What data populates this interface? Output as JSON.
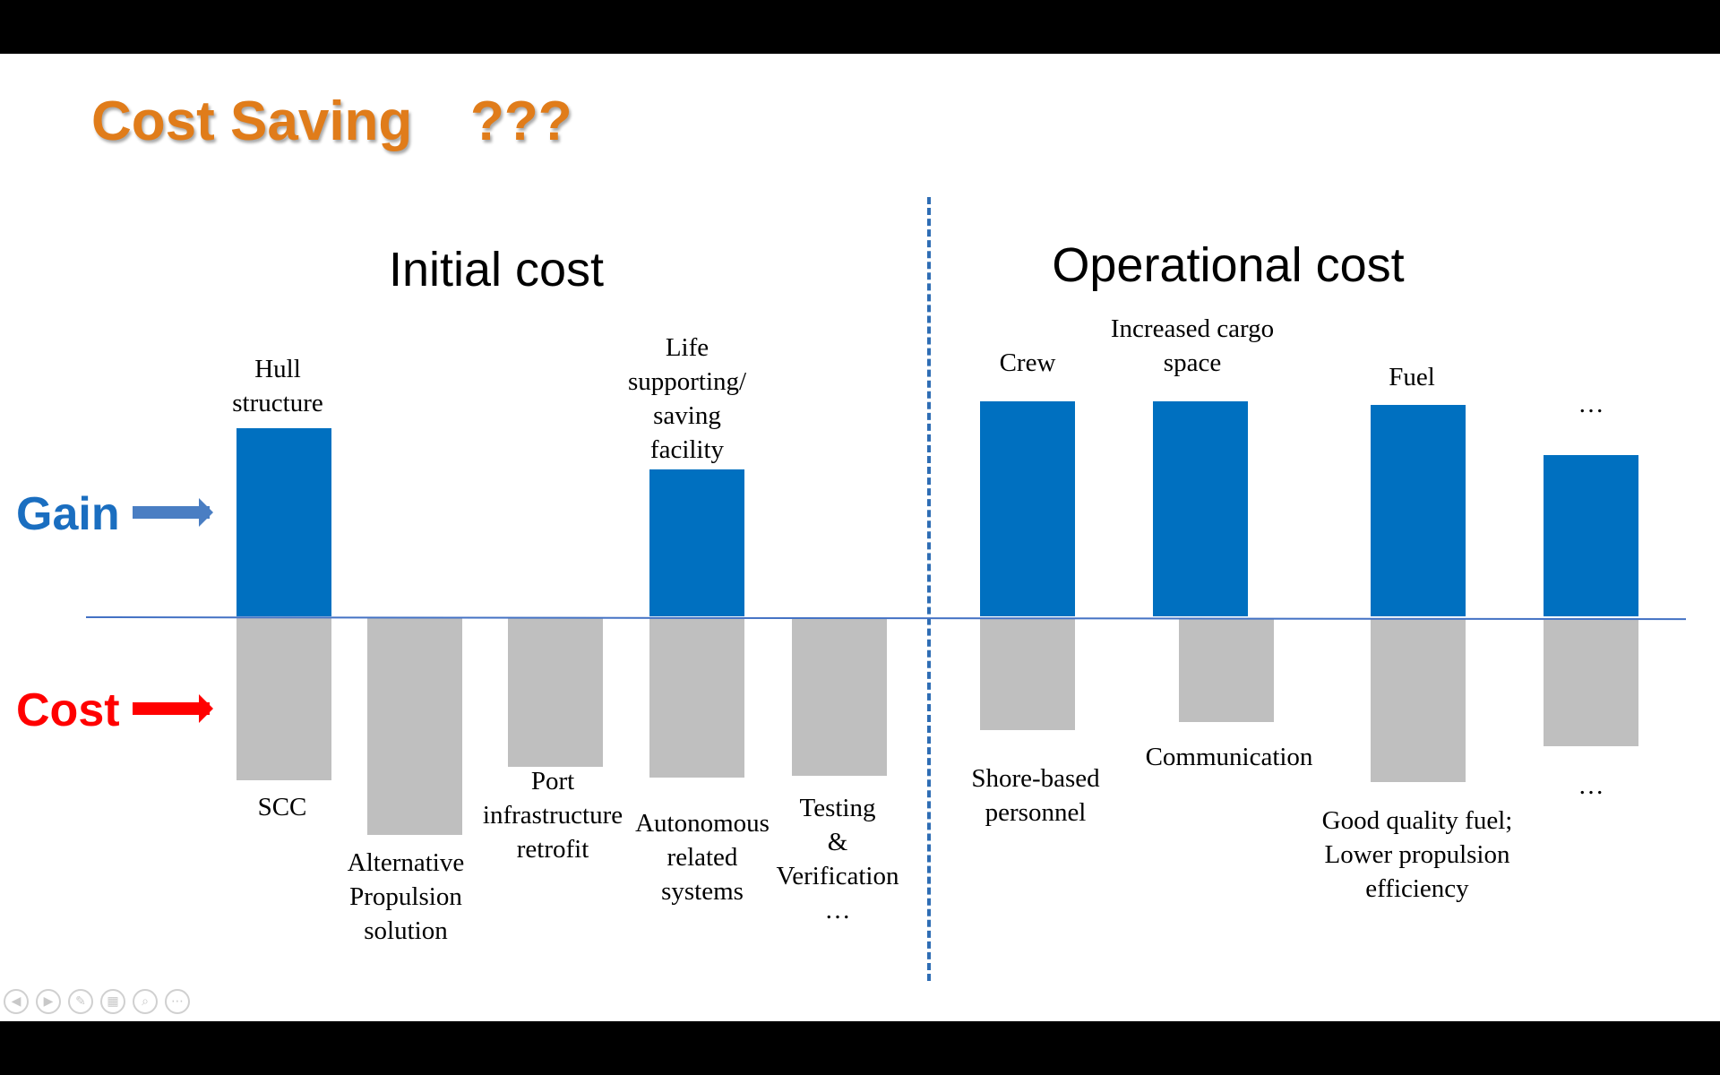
{
  "slide": {
    "title": "Cost Saving",
    "title_question": "???",
    "section_initial": "Initial cost",
    "section_operational": "Operational cost",
    "gain_label": "Gain",
    "cost_label": "Cost",
    "colors": {
      "gain": "#0070C0",
      "cost": "#BFBFBF",
      "title": "#E07C1A",
      "gain_text": "#1A6EC0",
      "cost_text": "#FF0000"
    }
  },
  "chart_data": {
    "type": "bar",
    "gain_labels": [
      {
        "text": "Hull\nstructure"
      },
      {
        "text": "Life\nsupporting/\nsaving\nfacility"
      },
      {
        "text": "Crew"
      },
      {
        "text": "Increased cargo\nspace"
      },
      {
        "text": "Fuel"
      },
      {
        "text": "…"
      }
    ],
    "cost_labels": [
      {
        "text": "SCC"
      },
      {
        "text": "Alternative\nPropulsion\nsolution"
      },
      {
        "text": "Port\ninfrastructure\nretrofit"
      },
      {
        "text": "Autonomous\nrelated\nsystems"
      },
      {
        "text": "Testing\n&\nVerification\n…"
      },
      {
        "text": "Shore-based\npersonnel"
      },
      {
        "text": "Communication"
      },
      {
        "text": "Good quality fuel;\nLower propulsion\nefficiency"
      },
      {
        "text": "…"
      }
    ]
  },
  "controls": {
    "prev": "◀",
    "next": "▶",
    "pen": "✎",
    "slides": "▦",
    "zoom": "⌕",
    "more": "⋯"
  }
}
